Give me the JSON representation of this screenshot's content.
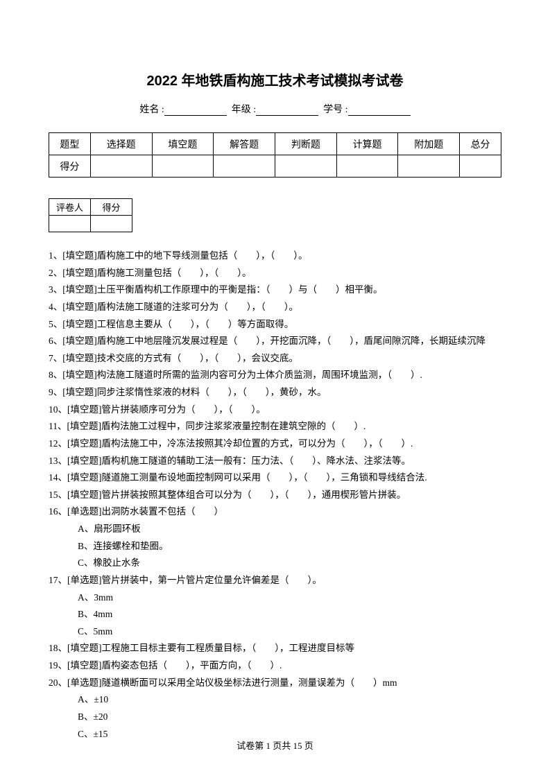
{
  "title": "2022 年地铁盾构施工技术考试模拟考试卷",
  "info": {
    "name_label": "姓名 :",
    "grade_label": "年级 :",
    "id_label": "学号 :"
  },
  "score_table": {
    "row1": [
      "题型",
      "选择题",
      "填空题",
      "解答题",
      "判断题",
      "计算题",
      "附加题",
      "总分"
    ],
    "row2_label": "得分"
  },
  "grader_table": {
    "col1": "评卷人",
    "col2": "得分"
  },
  "questions": [
    {
      "n": "1",
      "type": "[填空题]",
      "text": "盾构施工中的地下导线测量包括（　　），（　　）。"
    },
    {
      "n": "2",
      "type": "[填空题]",
      "text": "盾构施工测量包括（　　），（　　）。"
    },
    {
      "n": "3",
      "type": "[填空题]",
      "text": "土压平衡盾构机工作原理中的平衡是指：（　　）与（　　）相平衡。"
    },
    {
      "n": "4",
      "type": "[填空题]",
      "text": "盾构法施工隧道的注浆可分为（　　），（　　）。"
    },
    {
      "n": "5",
      "type": "[填空题]",
      "text": "工程信息主要从（　　），（　　）等方面取得。"
    },
    {
      "n": "6",
      "type": "[填空题]",
      "text": "盾构施工中地层隆沉发展过程是（　　），开挖面沉降，（　　），盾尾间隙沉降，长期延续沉降"
    },
    {
      "n": "7",
      "type": "[填空题]",
      "text": "技术交底的方式有（　　），（　　），会议交底。"
    },
    {
      "n": "8",
      "type": "[填空题]",
      "text": "构法施工隧道时所需的监测内容可分为土体介质监测，周围环境监测，（　　）."
    },
    {
      "n": "9",
      "type": "[填空题]",
      "text": "同步注浆惰性浆液的材料（　　），（　　），黄砂，水。"
    },
    {
      "n": "10",
      "type": "[填空题]",
      "text": "管片拼装顺序可分为（　　），（　　）。"
    },
    {
      "n": "11",
      "type": "[填空题]",
      "text": "盾构法施工过程中，同步注浆浆液量控制在建筑空隙的（　　）."
    },
    {
      "n": "12",
      "type": "[填空题]",
      "text": "盾构法施工中，冷冻法按照其冷却位置的方式，可以分为（　　），（　　）."
    },
    {
      "n": "13",
      "type": "[填空题]",
      "text": "盾构机施工隧道的辅助工法一般有：压力法、（　　）、降水法、注浆法等。"
    },
    {
      "n": "14",
      "type": "[填空题]",
      "text": "隧道施工测量布设地面控制网可以采用（　　），（　　），三角锁和导线结合法."
    },
    {
      "n": "15",
      "type": "[填空题]",
      "text": "管片拼装按照其整体组合可以分为（　　），（　　），通用楔形管片拼装。"
    },
    {
      "n": "16",
      "type": "[单选题]",
      "text": "出洞防水装置不包括（　　）",
      "options": [
        "A、扇形圆环板",
        "B、连接螺栓和垫圈。",
        "C、橡胶止水条"
      ]
    },
    {
      "n": "17",
      "type": "[单选题]",
      "text": "管片拼装中，第一片管片定位量允许偏差是（　　）。",
      "options": [
        "A、3mm",
        "B、4mm",
        "C、5mm"
      ]
    },
    {
      "n": "18",
      "type": "[填空题]",
      "text": "工程施工目标主要有工程质量目标，（　　），工程进度目标等"
    },
    {
      "n": "19",
      "type": "[填空题]",
      "text": "盾构姿态包括（　　），平面方向，（　　）."
    },
    {
      "n": "20",
      "type": "[单选题]",
      "text": "隧道横断面可以采用全站仪极坐标法进行测量，测量误差为（　　）mm",
      "options": [
        "A、±10",
        "B、±20",
        "C、±15"
      ]
    }
  ],
  "footer": {
    "text": "试卷第 1 页共 15 页"
  }
}
